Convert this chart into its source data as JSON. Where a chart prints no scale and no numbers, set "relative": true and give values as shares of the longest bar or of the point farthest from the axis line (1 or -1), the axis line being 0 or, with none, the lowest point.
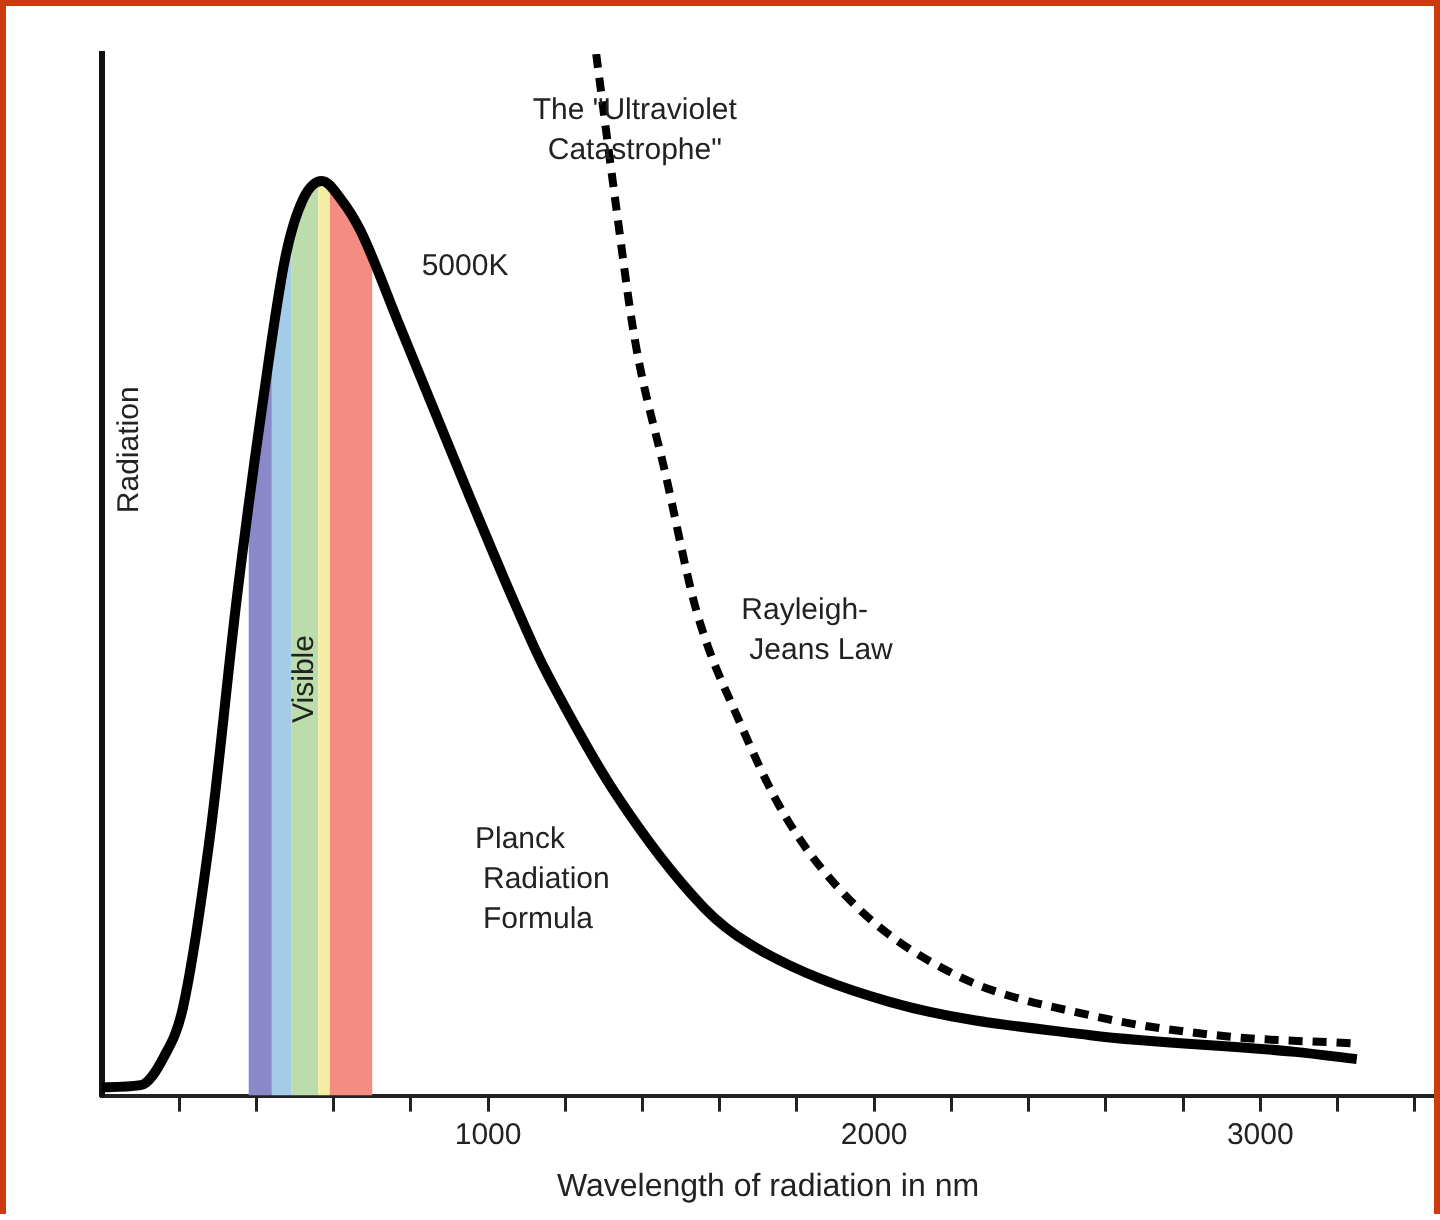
{
  "chart_data": {
    "type": "line",
    "relative": true,
    "xlabel": "Wavelength of radiation in nm",
    "ylabel": "Radiation",
    "xlim": [
      0,
      3450
    ],
    "xticks": [
      {
        "value": 200,
        "label": null
      },
      {
        "value": 400,
        "label": null
      },
      {
        "value": 600,
        "label": null
      },
      {
        "value": 800,
        "label": null
      },
      1000,
      {
        "value": 1200,
        "label": null
      },
      {
        "value": 1400,
        "label": null
      },
      {
        "value": 1600,
        "label": null
      },
      {
        "value": 1800,
        "label": null
      },
      2000,
      {
        "value": 2200,
        "label": null
      },
      {
        "value": 2400,
        "label": null
      },
      {
        "value": 2600,
        "label": null
      },
      {
        "value": 2800,
        "label": null
      },
      3000,
      {
        "value": 3200,
        "label": null
      },
      {
        "value": 3400,
        "label": null
      }
    ],
    "annotations": [
      "5000K",
      "The \"Ultraviolet Catastrophe\""
    ],
    "bands": [
      {
        "axis": "x",
        "from": 380,
        "to": 440,
        "color": "#8a88c8"
      },
      {
        "axis": "x",
        "from": 440,
        "to": 490,
        "color": "#a4cce8"
      },
      {
        "axis": "x",
        "from": 490,
        "to": 560,
        "color": "#bcdcac",
        "label": "Visible"
      },
      {
        "axis": "x",
        "from": 560,
        "to": 590,
        "color": "#f4eea4"
      },
      {
        "axis": "x",
        "from": 590,
        "to": 700,
        "color": "#f48c82"
      }
    ],
    "series": [
      {
        "name": "Planck Radiation Formula",
        "color": "#000000",
        "line_style": "solid",
        "x": [
          0,
          100,
          160,
          210,
          280,
          350,
          420,
          475,
          520,
          570,
          620,
          670,
          770,
          950,
          1120,
          1160,
          1330,
          1560,
          1680,
          2040,
          2560,
          3090,
          3250
        ],
        "values": [
          0.008,
          0.01,
          0.037,
          0.085,
          0.25,
          0.48,
          0.675,
          0.805,
          0.86,
          0.878,
          0.86,
          0.83,
          0.74,
          0.577,
          0.43,
          0.4,
          0.29,
          0.18,
          0.145,
          0.09,
          0.058,
          0.042,
          0.035
        ]
      },
      {
        "name": "Rayleigh-Jeans Law",
        "color": "#000000",
        "line_style": "dashed",
        "x": [
          1280,
          1330,
          1380,
          1460,
          1540,
          1650,
          1770,
          1950,
          2210,
          2560,
          2910,
          3250
        ],
        "values": [
          1.0,
          0.858,
          0.726,
          0.596,
          0.465,
          0.36,
          0.268,
          0.183,
          0.116,
          0.077,
          0.057,
          0.05
        ]
      }
    ]
  }
}
